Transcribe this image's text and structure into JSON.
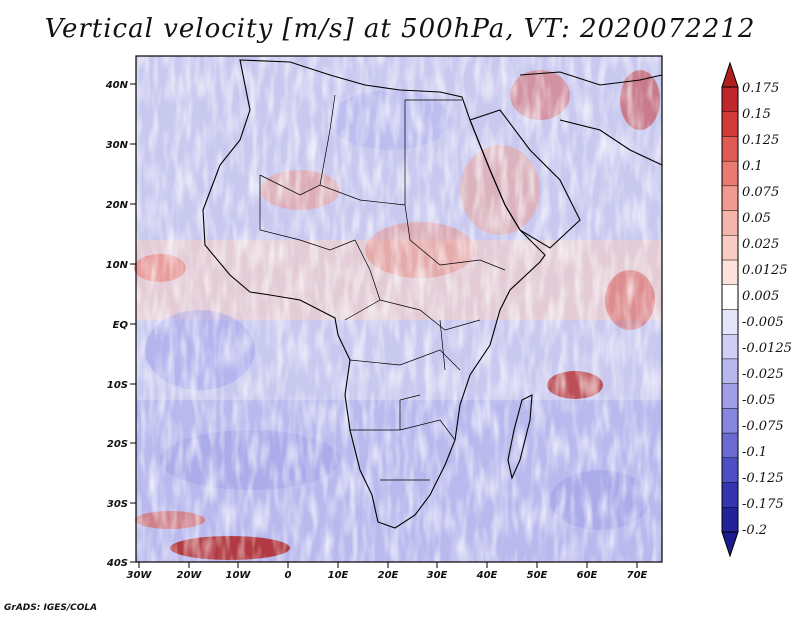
{
  "title": "Vertical velocity [m/s] at 500hPa, VT: 2020072212",
  "credit": "GrADS: IGES/COLA",
  "map": {
    "lat_labels": [
      "40N",
      "30N",
      "20N",
      "10N",
      "EQ",
      "10S",
      "20S",
      "30S",
      "40S"
    ],
    "lon_labels": [
      "30W",
      "20W",
      "10W",
      "0",
      "10E",
      "20E",
      "30E",
      "40E",
      "50E",
      "60E",
      "70E"
    ]
  },
  "colorbar": {
    "labels": [
      "0.175",
      "0.15",
      "0.125",
      "0.1",
      "0.075",
      "0.05",
      "0.025",
      "0.0125",
      "0.005",
      "-0.005",
      "-0.0125",
      "-0.025",
      "-0.05",
      "-0.075",
      "-0.1",
      "-0.125",
      "-0.175",
      "-0.2"
    ],
    "colors": [
      "#c0272d",
      "#d43a3a",
      "#e05a55",
      "#e87a72",
      "#f09a90",
      "#f5b5ab",
      "#f9cdc5",
      "#fde2dc",
      "#ffffff",
      "#e4e4fa",
      "#cfcff5",
      "#b8b8ef",
      "#a0a0e8",
      "#8686de",
      "#6a6ad2",
      "#4f4fc4",
      "#3535b0",
      "#22229a"
    ]
  }
}
